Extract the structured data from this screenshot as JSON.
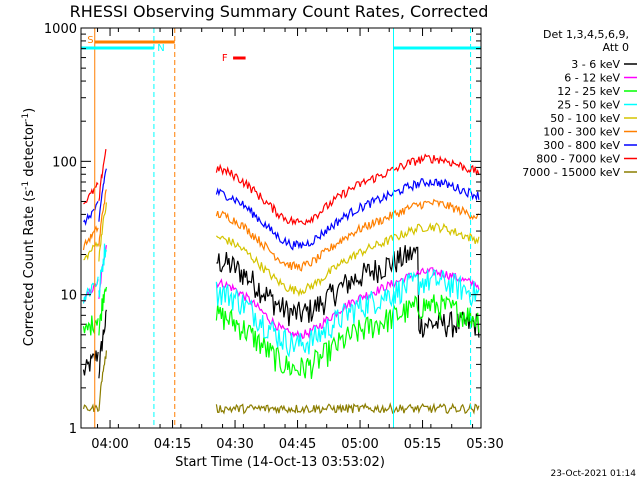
{
  "chart_data": {
    "type": "line",
    "title": "RHESSI Observing Summary Count Rates, Corrected",
    "xlabel": "Start Time (14-Oct-13 03:53:02)",
    "ylabel_parts": [
      "Corrected Count Rate (s",
      "-1",
      " detector",
      "-1",
      ")"
    ],
    "x_unit": "minutes since 03:53:02",
    "xlim": [
      0,
      96
    ],
    "ylim": [
      1,
      1000
    ],
    "yscale": "log",
    "x_ticks": [
      {
        "label": "04:00",
        "value": 6.97
      },
      {
        "label": "04:15",
        "value": 21.97
      },
      {
        "label": "04:30",
        "value": 36.97
      },
      {
        "label": "04:45",
        "value": 51.97
      },
      {
        "label": "05:00",
        "value": 66.97
      },
      {
        "label": "05:15",
        "value": 81.97
      },
      {
        "label": "05:30",
        "value": 96.97
      }
    ],
    "y_ticks": [
      {
        "label": "1",
        "value": 1
      },
      {
        "label": "10",
        "value": 10
      },
      {
        "label": "100",
        "value": 100
      },
      {
        "label": "1000",
        "value": 1000
      }
    ],
    "legend_header": [
      "Det 1,3,4,5,6,9,",
      "Att 0"
    ],
    "series": [
      {
        "name": "3 - 6 keV",
        "color": "#000000",
        "base": 16,
        "pre": 2.6
      },
      {
        "name": "6 - 12 keV",
        "color": "#ff00ff",
        "base": 11,
        "pre": 9
      },
      {
        "name": "12 - 25 keV",
        "color": "#00ff00",
        "base": 6.2,
        "pre": 5
      },
      {
        "name": "25 - 50 keV",
        "color": "#00ffff",
        "base": 9.5,
        "pre": 9.5
      },
      {
        "name": "50 - 100 keV",
        "color": "#d4c400",
        "base": 24,
        "pre": 18
      },
      {
        "name": "100 - 300 keV",
        "color": "#ff7f00",
        "base": 36,
        "pre": 23
      },
      {
        "name": "300 - 800 keV",
        "color": "#0000ff",
        "base": 52,
        "pre": 34
      },
      {
        "name": "800 - 7000 keV",
        "color": "#ff0000",
        "base": 78,
        "pre": 48
      },
      {
        "name": "7000 - 15000 keV",
        "color": "#8b7d00",
        "base": 1.4,
        "pre": 1.4
      }
    ],
    "flags": [
      {
        "label": "S",
        "color": "#ff7f00"
      },
      {
        "label": "N",
        "color": "#00ffff"
      },
      {
        "label": "F",
        "color": "#ff0000"
      }
    ],
    "footer_date": "23-Oct-2021 01:14"
  }
}
